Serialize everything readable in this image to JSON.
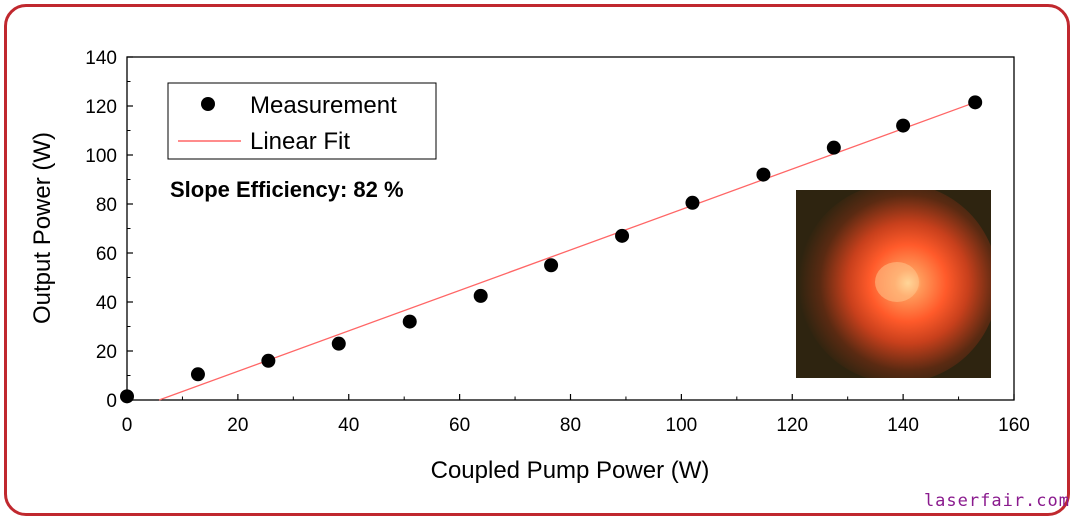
{
  "chart_data": {
    "type": "scatter",
    "xlabel": "Coupled Pump Power (W)",
    "ylabel": "Output Power (W)",
    "xlim": [
      0,
      160
    ],
    "ylim": [
      0,
      140
    ],
    "xticks": [
      0,
      20,
      40,
      60,
      80,
      100,
      120,
      140,
      160
    ],
    "yticks": [
      0,
      20,
      40,
      60,
      80,
      100,
      120,
      140
    ],
    "grid": false,
    "legend_placement": "top-left",
    "series": [
      {
        "name": "Measurement",
        "kind": "scatter",
        "color": "#000000",
        "x": [
          0,
          12.8,
          25.5,
          38.2,
          51.0,
          63.8,
          76.5,
          89.3,
          102.0,
          114.8,
          127.5,
          140.0,
          153.0
        ],
        "y": [
          1.5,
          10.5,
          16.0,
          23.0,
          32.0,
          42.5,
          55.0,
          67.0,
          80.5,
          92.0,
          103.0,
          112.0,
          121.5
        ]
      },
      {
        "name": "Linear Fit",
        "kind": "line",
        "color": "#ff6666",
        "x": [
          5.8,
          153.0
        ],
        "y": [
          0,
          121.5
        ]
      }
    ],
    "annotation": "Slope Efficiency: 82 %",
    "inset_image": "laser-beam-spot"
  },
  "watermark": "laserfair.com"
}
